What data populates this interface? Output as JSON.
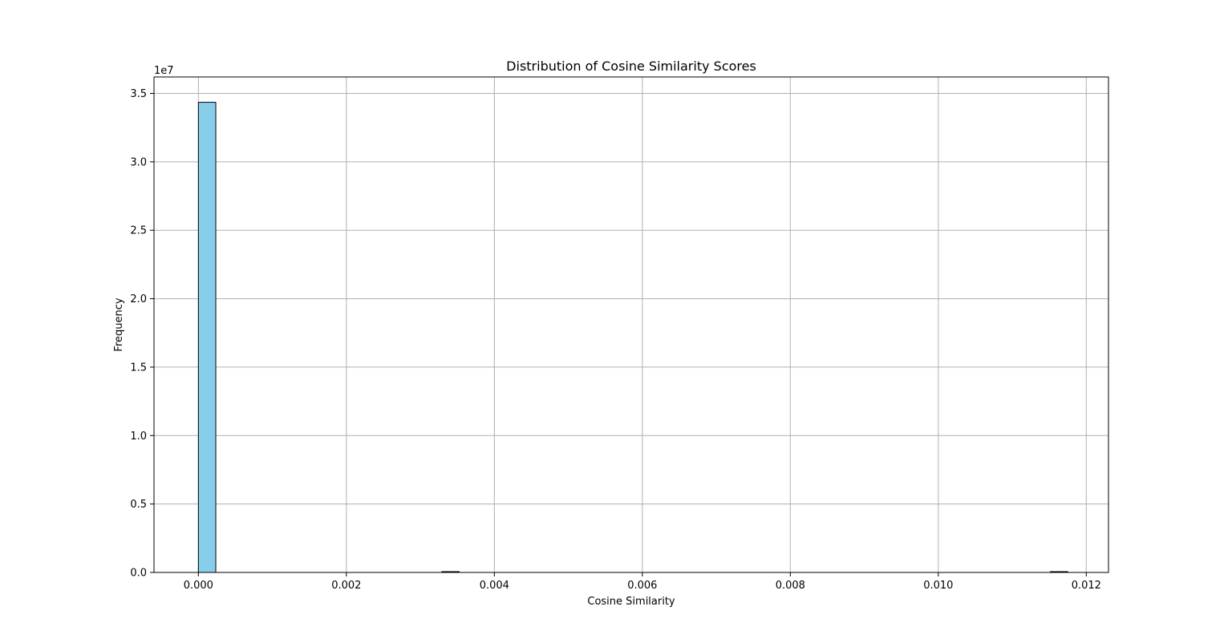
{
  "chart_data": {
    "type": "bar",
    "title": "Distribution of Cosine Similarity Scores",
    "xlabel": "Cosine Similarity",
    "ylabel": "Frequency",
    "y_offset_text": "1e7",
    "xlim": [
      -0.0006,
      0.0123
    ],
    "ylim": [
      0,
      36200000
    ],
    "xticks": [
      {
        "value": 0.0,
        "label": "0.000"
      },
      {
        "value": 0.002,
        "label": "0.002"
      },
      {
        "value": 0.004,
        "label": "0.004"
      },
      {
        "value": 0.006,
        "label": "0.006"
      },
      {
        "value": 0.008,
        "label": "0.008"
      },
      {
        "value": 0.01,
        "label": "0.010"
      },
      {
        "value": 0.012,
        "label": "0.012"
      }
    ],
    "yticks": [
      {
        "value": 0,
        "label": "0.0"
      },
      {
        "value": 5000000,
        "label": "0.5"
      },
      {
        "value": 10000000,
        "label": "1.0"
      },
      {
        "value": 15000000,
        "label": "1.5"
      },
      {
        "value": 20000000,
        "label": "2.0"
      },
      {
        "value": 25000000,
        "label": "2.5"
      },
      {
        "value": 30000000,
        "label": "3.0"
      },
      {
        "value": 35000000,
        "label": "3.5"
      }
    ],
    "bins": [
      {
        "x0": 0.0,
        "x1": 0.000235,
        "count": 34350000
      },
      {
        "x0": 0.00329,
        "x1": 0.003525,
        "count": 12000
      },
      {
        "x0": 0.011515,
        "x1": 0.01175,
        "count": 8000
      }
    ],
    "bar_color": "#87ceeb",
    "edge_color": "#000000",
    "grid": true
  }
}
